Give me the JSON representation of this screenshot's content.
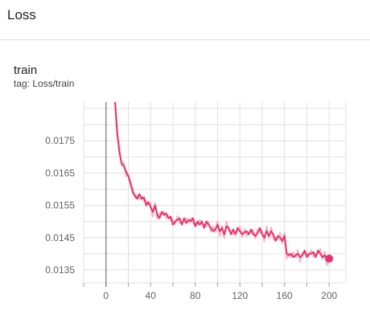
{
  "section": {
    "title": "Loss"
  },
  "card": {
    "title": "train",
    "tag_label": "tag: ",
    "tag_value": "Loss/train"
  },
  "colors": {
    "series": "#e8336b",
    "smoothed_band": "#f5b8cb",
    "grid": "#e0e0e0",
    "axis": "#9e9e9e",
    "zero_line": "#757575"
  },
  "chart_data": {
    "type": "line",
    "title": "",
    "xlabel": "",
    "ylabel": "",
    "xlim": [
      -20,
      215
    ],
    "ylim": [
      0.0131,
      0.0187
    ],
    "x_ticks": [
      0,
      40,
      80,
      120,
      160,
      200
    ],
    "y_ticks": [
      0.0135,
      0.0145,
      0.0155,
      0.0165,
      0.0175
    ],
    "x_tick_labels": [
      "0",
      "40",
      "80",
      "120",
      "160",
      "200"
    ],
    "y_tick_labels": [
      "0.0135",
      "0.0145",
      "0.0155",
      "0.0165",
      "0.0175"
    ],
    "grid": true,
    "series": [
      {
        "name": "",
        "x": [
          8,
          10,
          12,
          14,
          16,
          18,
          20,
          22,
          24,
          26,
          28,
          30,
          32,
          34,
          36,
          38,
          40,
          42,
          44,
          46,
          48,
          50,
          52,
          54,
          56,
          58,
          60,
          62,
          64,
          66,
          68,
          70,
          72,
          74,
          76,
          78,
          80,
          82,
          84,
          86,
          88,
          90,
          92,
          94,
          96,
          98,
          100,
          102,
          104,
          106,
          108,
          110,
          112,
          114,
          116,
          118,
          120,
          122,
          124,
          126,
          128,
          130,
          132,
          134,
          136,
          138,
          140,
          142,
          144,
          146,
          148,
          150,
          152,
          154,
          156,
          158,
          160,
          162,
          164,
          166,
          168,
          170,
          172,
          174,
          176,
          178,
          180,
          182,
          184,
          186,
          188,
          190,
          192,
          194,
          196,
          198,
          200
        ],
        "y": [
          0.0188,
          0.0178,
          0.01715,
          0.0168,
          0.01672,
          0.01655,
          0.0164,
          0.0162,
          0.0159,
          0.0158,
          0.0157,
          0.01585,
          0.0157,
          0.01575,
          0.0155,
          0.0156,
          0.01545,
          0.0153,
          0.0155,
          0.0152,
          0.0151,
          0.0153,
          0.0152,
          0.01525,
          0.0151,
          0.01515,
          0.0149,
          0.015,
          0.01505,
          0.0151,
          0.0149,
          0.0151,
          0.01495,
          0.01505,
          0.015,
          0.0151,
          0.01485,
          0.015,
          0.0149,
          0.015,
          0.0148,
          0.015,
          0.0149,
          0.0148,
          0.0147,
          0.01475,
          0.0149,
          0.0147,
          0.0148,
          0.0146,
          0.01485,
          0.0148,
          0.0146,
          0.01475,
          0.0146,
          0.0148,
          0.0147,
          0.0146,
          0.01465,
          0.0147,
          0.0146,
          0.01475,
          0.0146,
          0.01455,
          0.01465,
          0.0148,
          0.0146,
          0.0145,
          0.0147,
          0.01455,
          0.0147,
          0.0146,
          0.0144,
          0.01455,
          0.0145,
          0.0144,
          0.01455,
          0.014,
          0.01395,
          0.014,
          0.0139,
          0.01395,
          0.014,
          0.0139,
          0.01395,
          0.0141,
          0.0139,
          0.014,
          0.014,
          0.01405,
          0.0139,
          0.0141,
          0.014,
          0.0139,
          0.01395,
          0.0138,
          0.01385
        ]
      }
    ]
  }
}
